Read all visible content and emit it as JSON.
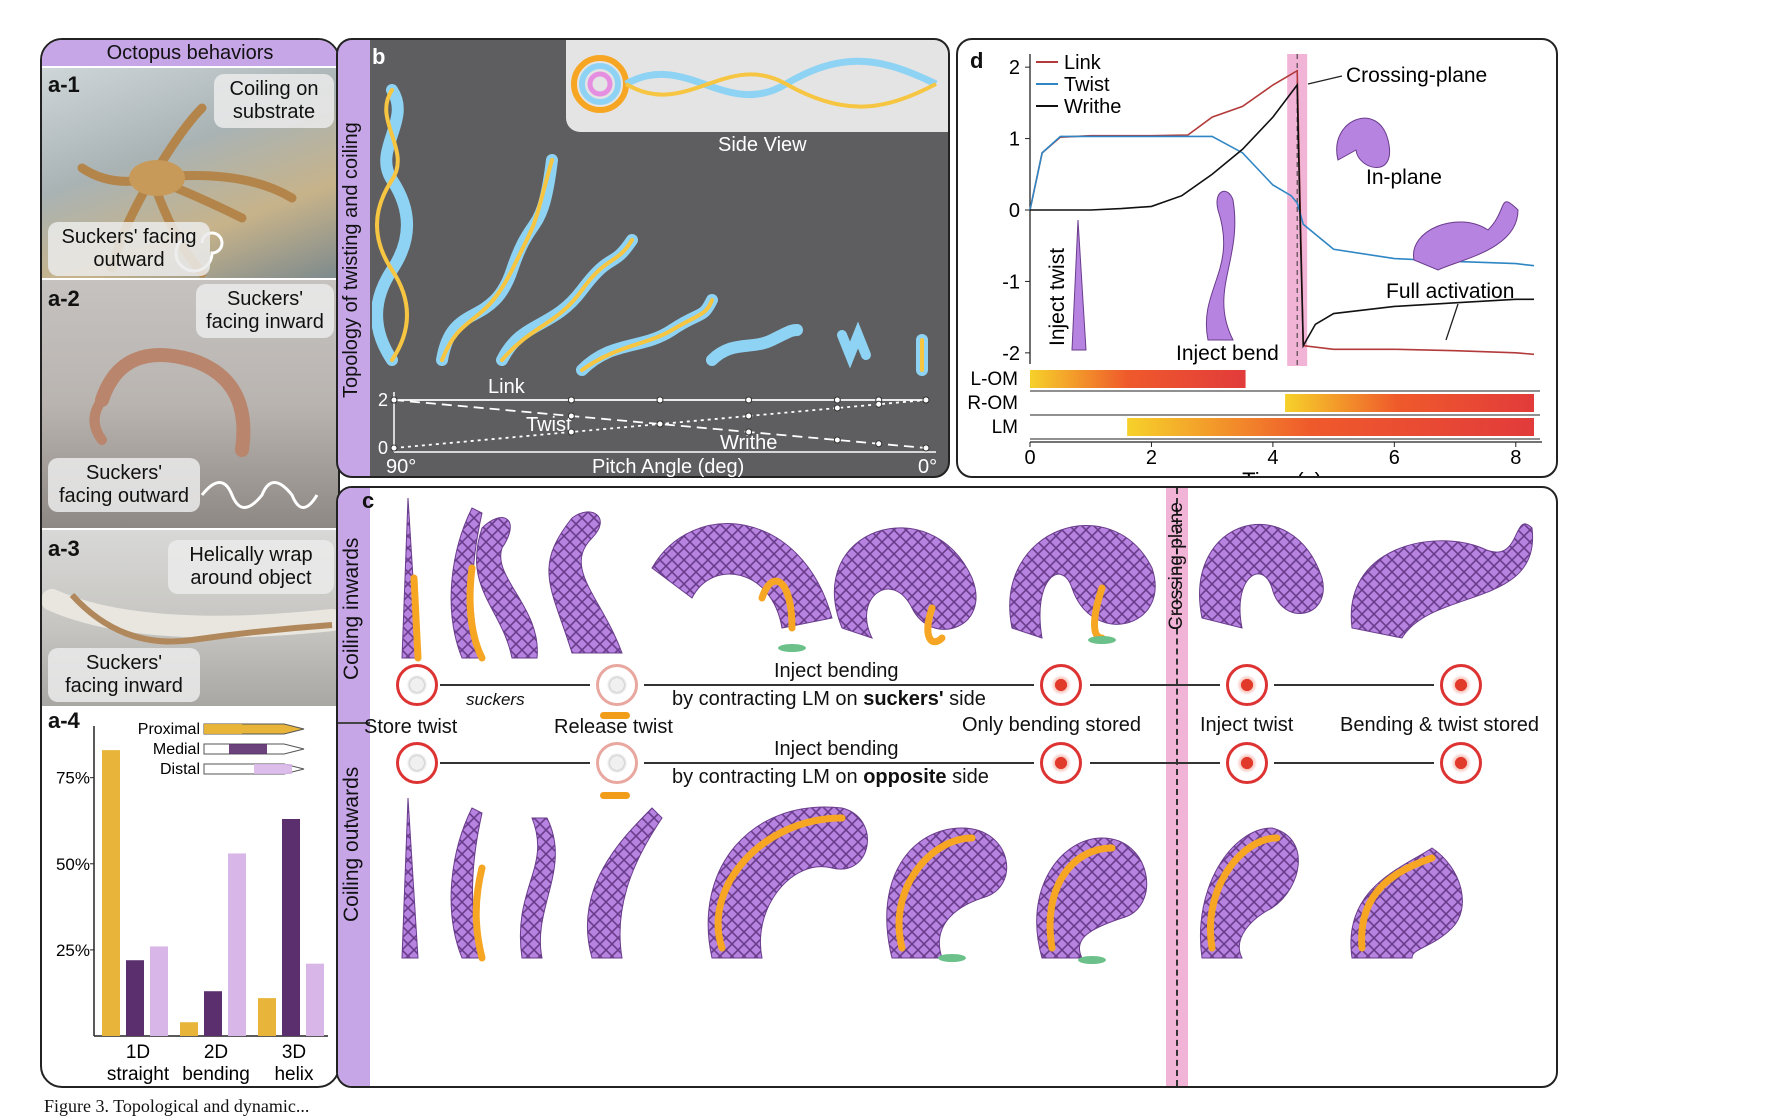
{
  "panel_a": {
    "title": "Octopus behaviors",
    "sub1": {
      "label": "a-1",
      "caption_top": "Coiling on substrate",
      "caption_bottom": "Suckers' facing outward"
    },
    "sub2": {
      "label": "a-2",
      "caption_top": "Suckers' facing inward",
      "caption_bottom": "Suckers' facing outward"
    },
    "sub3": {
      "label": "a-3",
      "caption_top": "Helically wrap around object",
      "caption_bottom": "Suckers' facing inward"
    },
    "sub4": {
      "label": "a-4",
      "legend": [
        "Proximal",
        "Medial",
        "Distal"
      ]
    }
  },
  "panel_b": {
    "label": "b",
    "side_view": "Side View",
    "vertical_title": "Topology of twisting and coiling",
    "curve_labels": {
      "link": "Link",
      "twist": "Twist",
      "writhe": "Writhe"
    },
    "x_start": "90°",
    "x_end": "0°",
    "xlabel": "Pitch Angle (deg)",
    "y_ticks": [
      "2",
      "0"
    ]
  },
  "panel_c": {
    "label": "c",
    "row_top": "Coiling inwards",
    "row_bottom": "Coiling outwards",
    "crossing_plane": "Crossing-plane",
    "suckers": "suckers",
    "store_twist": "Store twist",
    "release_twist": "Release twist",
    "only_bending": "Only bending stored",
    "inject_twist": "Inject twist",
    "bending_twist": "Bending & twist stored",
    "inject_bending": "Inject bending",
    "contract_prefix": "by contracting LM on",
    "suckers_side": "suckers'",
    "opposite_side": "opposite",
    "side_suffix": "side"
  },
  "panel_d": {
    "label": "d",
    "annotations": {
      "crossing_plane": "Crossing-plane",
      "in_plane": "In-plane",
      "full_activation": "Full activation",
      "inject_twist": "Inject twist",
      "inject_bend": "Inject bend"
    },
    "bar_labels": [
      "L-OM",
      "R-OM",
      "LM"
    ]
  },
  "chart_data": [
    {
      "type": "bar",
      "categories": [
        "1D straight",
        "2D bending",
        "3D helix"
      ],
      "series": [
        {
          "name": "Proximal",
          "values": [
            83,
            4,
            11
          ]
        },
        {
          "name": "Medial",
          "values": [
            22,
            13,
            63
          ]
        },
        {
          "name": "Distal",
          "values": [
            26,
            53,
            21
          ]
        }
      ],
      "y_ticks": [
        "25%",
        "50%",
        "75%"
      ],
      "ylim": [
        0,
        90
      ],
      "colors": [
        "#e8b53a",
        "#5b2e6e",
        "#d9b6e8"
      ],
      "legend_position": "top-right"
    },
    {
      "type": "line",
      "xlim": [
        90,
        0
      ],
      "ylim": [
        0,
        2
      ],
      "series": [
        {
          "name": "Link",
          "x": [
            90,
            0
          ],
          "y": [
            2,
            2
          ],
          "style": "solid"
        },
        {
          "name": "Twist",
          "x": [
            90,
            0
          ],
          "y": [
            2,
            0
          ],
          "style": "dashed"
        },
        {
          "name": "Writhe",
          "x": [
            90,
            0
          ],
          "y": [
            0,
            2
          ],
          "style": "dotted"
        }
      ]
    },
    {
      "type": "line",
      "xlabel": "Time (s)",
      "x_ticks": [
        "0",
        "2",
        "4",
        "6",
        "8"
      ],
      "y_ticks": [
        "2",
        "1",
        "0",
        "-1",
        "-2"
      ],
      "xlim": [
        0,
        8.3
      ],
      "ylim": [
        -2.1,
        2.1
      ],
      "crossing_time": 4.4,
      "series": [
        {
          "name": "Link",
          "color": "#b33a3a",
          "x": [
            0,
            0.2,
            0.5,
            1,
            2,
            2.6,
            3,
            3.5,
            4,
            4.3,
            4.4,
            4.5,
            5,
            6,
            7,
            8,
            8.3
          ],
          "y": [
            0,
            0.8,
            1.02,
            1.04,
            1.04,
            1.05,
            1.3,
            1.45,
            1.75,
            1.9,
            1.95,
            -1.9,
            -1.95,
            -1.95,
            -1.97,
            -2.0,
            -2.02
          ]
        },
        {
          "name": "Twist",
          "color": "#2f86c4",
          "x": [
            0,
            0.2,
            0.5,
            1,
            2,
            3,
            3.5,
            4,
            4.3,
            4.4,
            4.5,
            5,
            6,
            7,
            8,
            8.3
          ],
          "y": [
            0,
            0.8,
            1.03,
            1.03,
            1.03,
            1.03,
            0.8,
            0.35,
            0.2,
            0.1,
            -0.2,
            -0.55,
            -0.68,
            -0.72,
            -0.75,
            -0.78
          ]
        },
        {
          "name": "Writhe",
          "color": "#111111",
          "x": [
            0,
            1,
            1.5,
            2,
            2.5,
            3,
            3.5,
            4,
            4.4,
            4.45,
            4.5,
            4.7,
            5,
            6,
            7,
            8,
            8.3
          ],
          "y": [
            0,
            0,
            0.02,
            0.05,
            0.2,
            0.5,
            0.85,
            1.3,
            1.75,
            -0.2,
            -1.9,
            -1.6,
            -1.45,
            -1.35,
            -1.3,
            -1.25,
            -1.25
          ]
        }
      ],
      "activation_bars": [
        {
          "name": "L-OM",
          "start": 0,
          "end": 3.55
        },
        {
          "name": "R-OM",
          "start": 4.2,
          "end": 8.3
        },
        {
          "name": "LM",
          "start": 1.6,
          "end": 8.3
        }
      ]
    }
  ],
  "footer": "Figure 3. Topological and dynamic..."
}
